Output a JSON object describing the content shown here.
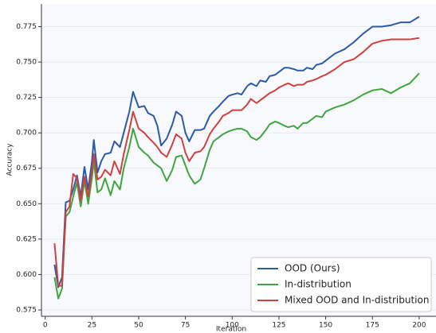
{
  "chart_data": {
    "type": "line",
    "x_label": "Iteration",
    "y_label": "Accuracy",
    "x": [
      5,
      7,
      9,
      11,
      13,
      15,
      17,
      19,
      21,
      23,
      25,
      26,
      28,
      30,
      32,
      35,
      37,
      40,
      42,
      45,
      47,
      50,
      53,
      55,
      58,
      60,
      62,
      65,
      68,
      70,
      73,
      75,
      77,
      80,
      83,
      85,
      88,
      90,
      93,
      95,
      98,
      100,
      103,
      105,
      108,
      110,
      113,
      115,
      118,
      120,
      123,
      125,
      128,
      130,
      133,
      135,
      138,
      140,
      143,
      145,
      148,
      150,
      155,
      160,
      165,
      170,
      175,
      180,
      185,
      190,
      195,
      200
    ],
    "series": [
      {
        "name": "OOD (Ours)",
        "color": "#2c5aa6",
        "values": [
          0.607,
          0.591,
          0.598,
          0.651,
          0.652,
          0.66,
          0.67,
          0.655,
          0.676,
          0.66,
          0.68,
          0.695,
          0.672,
          0.68,
          0.685,
          0.686,
          0.694,
          0.69,
          0.7,
          0.715,
          0.729,
          0.718,
          0.719,
          0.714,
          0.712,
          0.705,
          0.691,
          0.696,
          0.706,
          0.715,
          0.712,
          0.7,
          0.694,
          0.702,
          0.702,
          0.703,
          0.712,
          0.715,
          0.719,
          0.722,
          0.726,
          0.727,
          0.728,
          0.727,
          0.733,
          0.735,
          0.733,
          0.737,
          0.736,
          0.74,
          0.741,
          0.743,
          0.746,
          0.746,
          0.745,
          0.744,
          0.744,
          0.746,
          0.745,
          0.748,
          0.749,
          0.751,
          0.756,
          0.759,
          0.764,
          0.77,
          0.775,
          0.775,
          0.776,
          0.778,
          0.778,
          0.782
        ]
      },
      {
        "name": "In-distribution",
        "color": "#3fa63f",
        "values": [
          0.598,
          0.583,
          0.59,
          0.641,
          0.644,
          0.655,
          0.665,
          0.648,
          0.666,
          0.65,
          0.668,
          0.68,
          0.658,
          0.66,
          0.668,
          0.656,
          0.666,
          0.66,
          0.675,
          0.69,
          0.703,
          0.69,
          0.686,
          0.684,
          0.679,
          0.677,
          0.675,
          0.666,
          0.674,
          0.683,
          0.684,
          0.677,
          0.67,
          0.664,
          0.667,
          0.675,
          0.688,
          0.694,
          0.697,
          0.699,
          0.701,
          0.702,
          0.703,
          0.703,
          0.701,
          0.697,
          0.695,
          0.697,
          0.702,
          0.706,
          0.708,
          0.707,
          0.705,
          0.704,
          0.705,
          0.703,
          0.707,
          0.707,
          0.71,
          0.712,
          0.711,
          0.715,
          0.718,
          0.72,
          0.723,
          0.727,
          0.73,
          0.731,
          0.728,
          0.732,
          0.735,
          0.742
        ]
      },
      {
        "name": "Mixed OOD and In-distribution",
        "color": "#d13f3f",
        "values": [
          0.622,
          0.592,
          0.592,
          0.644,
          0.648,
          0.671,
          0.668,
          0.652,
          0.669,
          0.655,
          0.673,
          0.685,
          0.667,
          0.669,
          0.674,
          0.67,
          0.68,
          0.671,
          0.685,
          0.702,
          0.715,
          0.703,
          0.7,
          0.697,
          0.693,
          0.69,
          0.686,
          0.683,
          0.692,
          0.699,
          0.696,
          0.686,
          0.68,
          0.686,
          0.687,
          0.69,
          0.699,
          0.703,
          0.708,
          0.712,
          0.714,
          0.716,
          0.716,
          0.716,
          0.72,
          0.724,
          0.721,
          0.723,
          0.726,
          0.728,
          0.73,
          0.732,
          0.734,
          0.735,
          0.733,
          0.734,
          0.734,
          0.736,
          0.737,
          0.738,
          0.74,
          0.741,
          0.745,
          0.75,
          0.752,
          0.757,
          0.763,
          0.765,
          0.766,
          0.766,
          0.766,
          0.767
        ]
      }
    ],
    "xlim": [
      -2,
      209
    ],
    "ylim": [
      0.5705,
      0.791
    ],
    "xticks": [
      0,
      25,
      50,
      75,
      100,
      125,
      150,
      175,
      200
    ],
    "yticks": [
      {
        "value": 0.575,
        "label": "0.575"
      },
      {
        "value": 0.6,
        "label": "0.600"
      },
      {
        "value": 0.625,
        "label": "0.625"
      },
      {
        "value": 0.65,
        "label": "0.650"
      },
      {
        "value": 0.675,
        "label": "0.675"
      },
      {
        "value": 0.7,
        "label": "0.700"
      },
      {
        "value": 0.725,
        "label": "0.725"
      },
      {
        "value": 0.75,
        "label": "0.750"
      },
      {
        "value": 0.775,
        "label": "0.775"
      }
    ],
    "grid": true,
    "legend": "lower right"
  }
}
